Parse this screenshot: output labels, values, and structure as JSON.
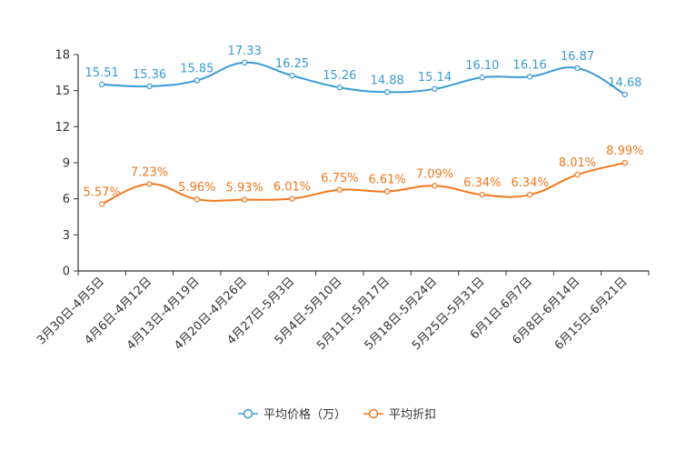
{
  "chart_data": {
    "type": "line",
    "categories": [
      "3月30日-4月5日",
      "4月6日-4月12日",
      "4月13日-4月19日",
      "4月20日-4月26日",
      "4月27日-5月3日",
      "5月4日-5月10日",
      "5月11日-5月17日",
      "5月18日-5月24日",
      "5月25日-5月31日",
      "6月1日-6月7日",
      "6月8日-6月14日",
      "6月15日-6月21日"
    ],
    "series": [
      {
        "name": "平均价格（万）",
        "color": "#3a9ad4",
        "values": [
          15.51,
          15.36,
          15.85,
          17.33,
          16.25,
          15.26,
          14.88,
          15.14,
          16.1,
          16.16,
          16.87,
          14.68
        ],
        "labels": [
          "15.51",
          "15.36",
          "15.85",
          "17.33",
          "16.25",
          "15.26",
          "14.88",
          "15.14",
          "16.10",
          "16.16",
          "16.87",
          "14.68"
        ]
      },
      {
        "name": "平均折扣",
        "color": "#f2771d",
        "values": [
          5.57,
          7.23,
          5.96,
          5.93,
          6.01,
          6.75,
          6.61,
          7.09,
          6.34,
          6.34,
          8.01,
          8.99
        ],
        "labels": [
          "5.57%",
          "7.23%",
          "5.96%",
          "5.93%",
          "6.01%",
          "6.75%",
          "6.61%",
          "7.09%",
          "6.34%",
          "6.34%",
          "8.01%",
          "8.99%"
        ]
      }
    ],
    "yticks": [
      "0",
      "3",
      "6",
      "9",
      "12",
      "15",
      "18"
    ],
    "ylim": [
      0,
      18
    ],
    "title": "",
    "xlabel": "",
    "ylabel": "",
    "legend_position": "bottom-center",
    "smooth": true
  }
}
